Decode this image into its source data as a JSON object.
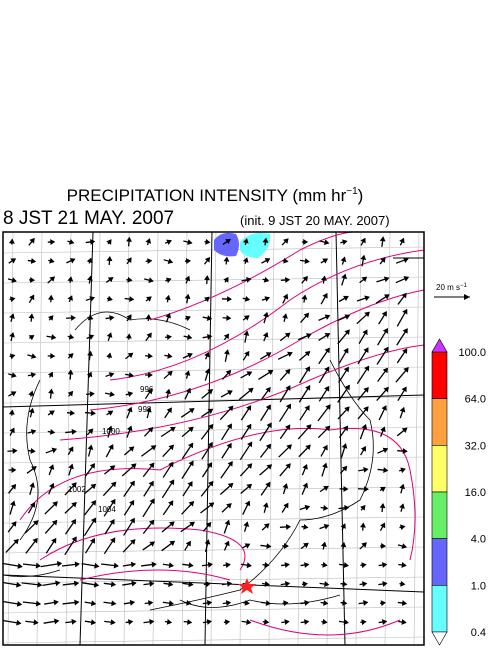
{
  "title": {
    "text": "PRECIPITATION INTENSITY (mm hr",
    "superscript": "−1",
    "close": ")"
  },
  "valid_time": "8 JST 21 MAY. 2007",
  "init_time": "(init. 9 JST 20 MAY. 2007)",
  "reference_vector": {
    "label": "20 m s",
    "superscript": "−1"
  },
  "colorbar": {
    "labels": [
      "100.0",
      "64.0",
      "32.0",
      "16.0",
      "4.0",
      "1.0",
      "0.4"
    ],
    "colors": [
      "#ff0000",
      "#ffa040",
      "#ffff66",
      "#66ee66",
      "#6666ff",
      "#66ffff"
    ],
    "over_color": "#cc33ff",
    "under_color": "#ffffff"
  },
  "contour_labels": [
    "996",
    "998",
    "1000",
    "1002",
    "1004"
  ]
}
